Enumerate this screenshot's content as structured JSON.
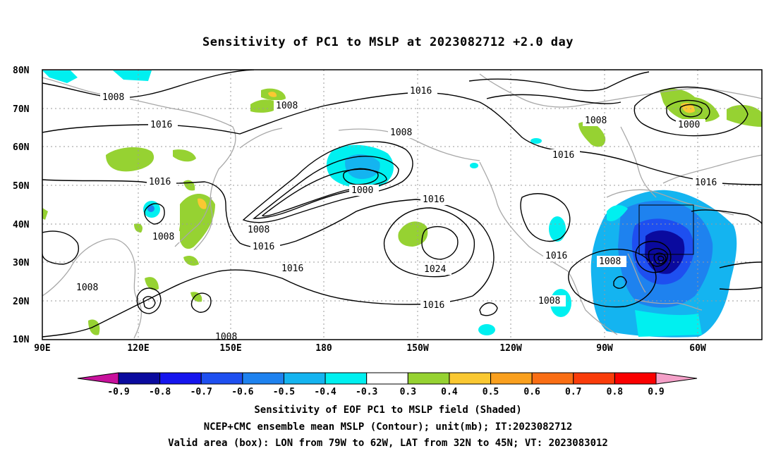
{
  "title": "Sensitivity of PC1 to MSLP at 2023082712 +2.0 day",
  "axes": {
    "lat_labels": [
      "80N",
      "70N",
      "60N",
      "50N",
      "40N",
      "30N",
      "20N",
      "10N"
    ],
    "lon_labels": [
      "90E",
      "120E",
      "150E",
      "180",
      "150W",
      "120W",
      "90W",
      "60W"
    ]
  },
  "contour_labels": {
    "c1008_a": "1008",
    "c1008_b": "1008",
    "c1008_c": "1008",
    "c1008_d": "1008",
    "c1008_e": "1008",
    "c1008_f": "1008",
    "c1008_g": "1008",
    "c1008_h": "1008",
    "c1008_i": "1008",
    "c1008_j": "1008",
    "c1016_a": "1016",
    "c1016_b": "1016",
    "c1016_c": "1016",
    "c1016_d": "1016",
    "c1016_e": "1016",
    "c1016_f": "1016",
    "c1016_g": "1016",
    "c1016_h": "1016",
    "c1016_i": "1016",
    "c1000_a": "1000",
    "c1000_b": "1000",
    "c1024": "1024"
  },
  "colorbar": {
    "labels": [
      "-0.9",
      "-0.8",
      "-0.7",
      "-0.6",
      "-0.5",
      "-0.4",
      "-0.3",
      "0.3",
      "0.4",
      "0.5",
      "0.6",
      "0.7",
      "0.8",
      "0.9"
    ],
    "colors": [
      "#0a0a9e",
      "#1515ee",
      "#1e4ff0",
      "#1e82ef",
      "#14b4f0",
      "#00f0f0",
      "#ffffff",
      "#96d232",
      "#fac832",
      "#faa01e",
      "#fa6e14",
      "#fa3c0a",
      "#fa0000"
    ],
    "low_extend_color": "#c8119c",
    "high_extend_color": "#f4a0c8"
  },
  "captions": {
    "line1": "Sensitivity of EOF PC1 to MSLP field (Shaded)",
    "line2": "NCEP+CMC ensemble mean MSLP (Contour); unit(mb); IT:2023082712",
    "line3": "Valid area (box): LON from 79W to 62W, LAT from 32N to 45N; VT: 2023083012"
  }
}
